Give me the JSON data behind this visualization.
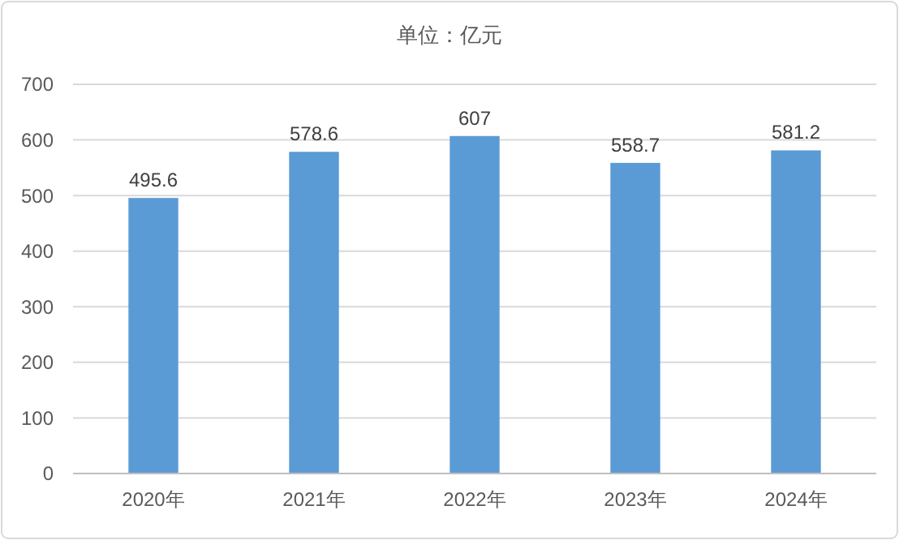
{
  "chart_data": {
    "type": "bar",
    "title": "单位：亿元",
    "categories": [
      "2020年",
      "2021年",
      "2022年",
      "2023年",
      "2024年"
    ],
    "values": [
      495.6,
      578.6,
      607,
      558.7,
      581.2
    ],
    "value_labels": [
      "495.6",
      "578.6",
      "607",
      "558.7",
      "581.2"
    ],
    "color": "#5b9bd5",
    "ylim": [
      0,
      700
    ],
    "yticks": [
      0,
      100,
      200,
      300,
      400,
      500,
      600,
      700
    ],
    "grid": "y"
  }
}
